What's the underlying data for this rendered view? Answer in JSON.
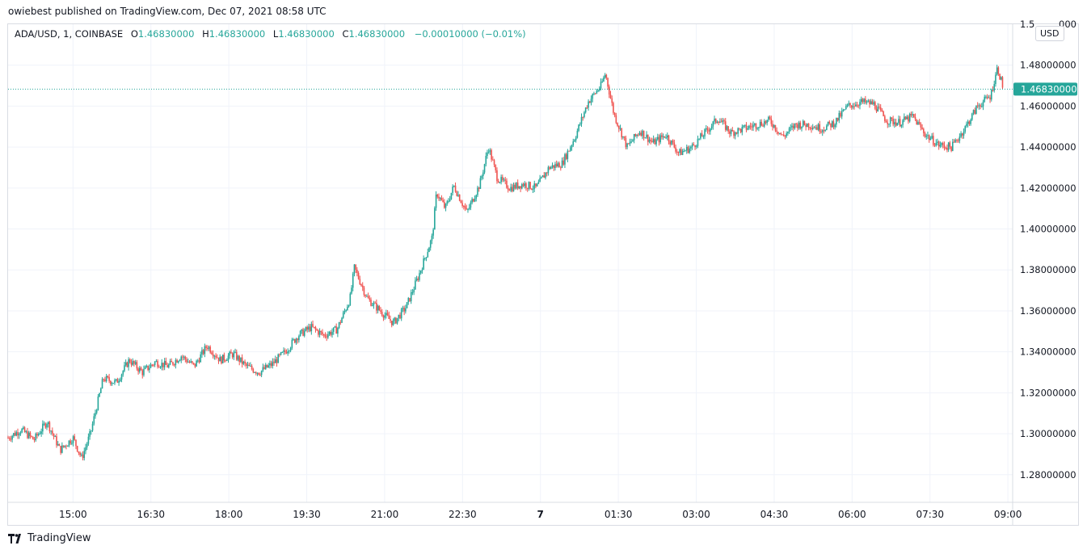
{
  "header": {
    "publisher_line": "owiebest published on TradingView.com, Dec 07, 2021 08:58 UTC"
  },
  "legend": {
    "symbol": "ADA/USD, 1, COINBASE",
    "open_label": "O",
    "open_value": "1.46830000",
    "high_label": "H",
    "high_value": "1.46830000",
    "low_label": "L",
    "low_value": "1.46830000",
    "close_label": "C",
    "close_value": "1.46830000",
    "change": "−0.00010000 (−0.01%)"
  },
  "currency": "USD",
  "footer": {
    "brand": "TradingView"
  },
  "colors": {
    "up": "#26a69a",
    "down": "#ef5350",
    "grid": "#f0f3fa",
    "last_price_bg": "#26a69a"
  },
  "chart_data": {
    "type": "candlestick",
    "symbol": "ADA/USD",
    "interval": "1",
    "exchange": "COINBASE",
    "ylim": [
      1.2665,
      1.5
    ],
    "y_ticks": [
      "1.28000000",
      "1.30000000",
      "1.32000000",
      "1.34000000",
      "1.36000000",
      "1.38000000",
      "1.40000000",
      "1.42000000",
      "1.44000000",
      "1.46000000",
      "1.48000000"
    ],
    "y_tick_top_partial": "1.5",
    "y_tick_top_partial_suffix": "000",
    "x_ticks": [
      "15:00",
      "16:30",
      "18:00",
      "19:30",
      "21:00",
      "22:30",
      "7",
      "01:30",
      "03:00",
      "04:30",
      "06:00",
      "07:30",
      "09:00"
    ],
    "last_price": "1.46830000",
    "last_price_value": 1.4683,
    "price_path": [
      {
        "t": "13:45",
        "v": 1.298
      },
      {
        "t": "14:00",
        "v": 1.302
      },
      {
        "t": "14:15",
        "v": 1.297
      },
      {
        "t": "14:30",
        "v": 1.306
      },
      {
        "t": "14:45",
        "v": 1.292
      },
      {
        "t": "15:00",
        "v": 1.298
      },
      {
        "t": "15:10",
        "v": 1.288
      },
      {
        "t": "15:20",
        "v": 1.3
      },
      {
        "t": "15:35",
        "v": 1.327
      },
      {
        "t": "15:50",
        "v": 1.325
      },
      {
        "t": "16:05",
        "v": 1.336
      },
      {
        "t": "16:20",
        "v": 1.33
      },
      {
        "t": "16:35",
        "v": 1.335
      },
      {
        "t": "16:50",
        "v": 1.333
      },
      {
        "t": "17:05",
        "v": 1.338
      },
      {
        "t": "17:20",
        "v": 1.333
      },
      {
        "t": "17:35",
        "v": 1.343
      },
      {
        "t": "17:50",
        "v": 1.336
      },
      {
        "t": "18:05",
        "v": 1.339
      },
      {
        "t": "18:20",
        "v": 1.333
      },
      {
        "t": "18:35",
        "v": 1.33
      },
      {
        "t": "18:50",
        "v": 1.334
      },
      {
        "t": "19:05",
        "v": 1.34
      },
      {
        "t": "19:20",
        "v": 1.348
      },
      {
        "t": "19:35",
        "v": 1.352
      },
      {
        "t": "19:50",
        "v": 1.348
      },
      {
        "t": "20:05",
        "v": 1.351
      },
      {
        "t": "20:20",
        "v": 1.366
      },
      {
        "t": "20:25",
        "v": 1.381
      },
      {
        "t": "20:40",
        "v": 1.366
      },
      {
        "t": "20:55",
        "v": 1.36
      },
      {
        "t": "21:10",
        "v": 1.354
      },
      {
        "t": "21:25",
        "v": 1.362
      },
      {
        "t": "21:40",
        "v": 1.378
      },
      {
        "t": "21:55",
        "v": 1.396
      },
      {
        "t": "22:00",
        "v": 1.418
      },
      {
        "t": "22:10",
        "v": 1.41
      },
      {
        "t": "22:20",
        "v": 1.421
      },
      {
        "t": "22:35",
        "v": 1.408
      },
      {
        "t": "22:50",
        "v": 1.422
      },
      {
        "t": "23:00",
        "v": 1.44
      },
      {
        "t": "23:10",
        "v": 1.425
      },
      {
        "t": "23:25",
        "v": 1.42
      },
      {
        "t": "23:40",
        "v": 1.422
      },
      {
        "t": "23:55",
        "v": 1.42
      },
      {
        "t": "00:10",
        "v": 1.43
      },
      {
        "t": "00:25",
        "v": 1.432
      },
      {
        "t": "00:40",
        "v": 1.445
      },
      {
        "t": "00:55",
        "v": 1.462
      },
      {
        "t": "01:10",
        "v": 1.47
      },
      {
        "t": "01:15",
        "v": 1.476
      },
      {
        "t": "01:25",
        "v": 1.456
      },
      {
        "t": "01:40",
        "v": 1.44
      },
      {
        "t": "01:55",
        "v": 1.448
      },
      {
        "t": "02:10",
        "v": 1.442
      },
      {
        "t": "02:25",
        "v": 1.446
      },
      {
        "t": "02:40",
        "v": 1.437
      },
      {
        "t": "02:55",
        "v": 1.44
      },
      {
        "t": "03:10",
        "v": 1.447
      },
      {
        "t": "03:25",
        "v": 1.454
      },
      {
        "t": "03:40",
        "v": 1.447
      },
      {
        "t": "03:55",
        "v": 1.449
      },
      {
        "t": "04:10",
        "v": 1.451
      },
      {
        "t": "04:25",
        "v": 1.453
      },
      {
        "t": "04:40",
        "v": 1.445
      },
      {
        "t": "04:55",
        "v": 1.451
      },
      {
        "t": "05:10",
        "v": 1.451
      },
      {
        "t": "05:25",
        "v": 1.449
      },
      {
        "t": "05:40",
        "v": 1.452
      },
      {
        "t": "05:55",
        "v": 1.46
      },
      {
        "t": "06:10",
        "v": 1.462
      },
      {
        "t": "06:25",
        "v": 1.461
      },
      {
        "t": "06:40",
        "v": 1.453
      },
      {
        "t": "06:55",
        "v": 1.452
      },
      {
        "t": "07:10",
        "v": 1.455
      },
      {
        "t": "07:25",
        "v": 1.446
      },
      {
        "t": "07:40",
        "v": 1.441
      },
      {
        "t": "07:55",
        "v": 1.44
      },
      {
        "t": "08:10",
        "v": 1.449
      },
      {
        "t": "08:25",
        "v": 1.46
      },
      {
        "t": "08:40",
        "v": 1.465
      },
      {
        "t": "08:48",
        "v": 1.479
      },
      {
        "t": "08:55",
        "v": 1.468
      }
    ]
  }
}
